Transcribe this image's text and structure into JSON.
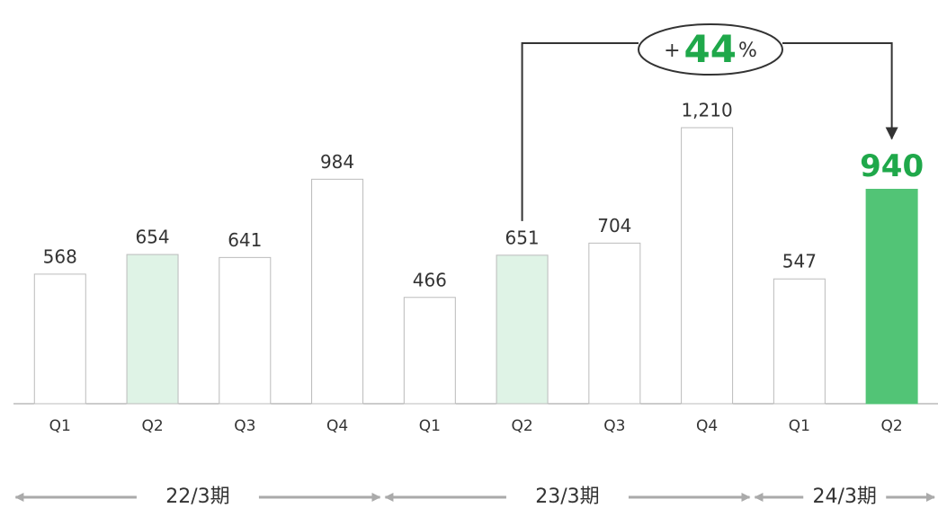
{
  "chart_data": {
    "type": "bar",
    "categories": [
      "Q1",
      "Q2",
      "Q3",
      "Q4",
      "Q1",
      "Q2",
      "Q3",
      "Q4",
      "Q1",
      "Q2"
    ],
    "values": [
      568,
      654,
      641,
      984,
      466,
      651,
      704,
      1210,
      547,
      940
    ],
    "value_labels": [
      "568",
      "654",
      "641",
      "984",
      "466",
      "651",
      "704",
      "1,210",
      "547",
      "940"
    ],
    "colors": [
      "#ffffff",
      "#dff3e6",
      "#ffffff",
      "#ffffff",
      "#ffffff",
      "#dff3e6",
      "#ffffff",
      "#ffffff",
      "#ffffff",
      "#52c476"
    ],
    "edge_colors": [
      "#bbbbbb",
      "#bbbbbb",
      "#bbbbbb",
      "#bbbbbb",
      "#bbbbbb",
      "#bbbbbb",
      "#bbbbbb",
      "#bbbbbb",
      "#bbbbbb",
      "#52c476"
    ],
    "annotation": {
      "prefix": "+",
      "value": 44,
      "suffix": "%"
    },
    "groups": [
      {
        "label": "22/3期",
        "count": 4
      },
      {
        "label": "23/3期",
        "count": 4
      },
      {
        "label": "24/3期",
        "count": 2
      }
    ]
  }
}
